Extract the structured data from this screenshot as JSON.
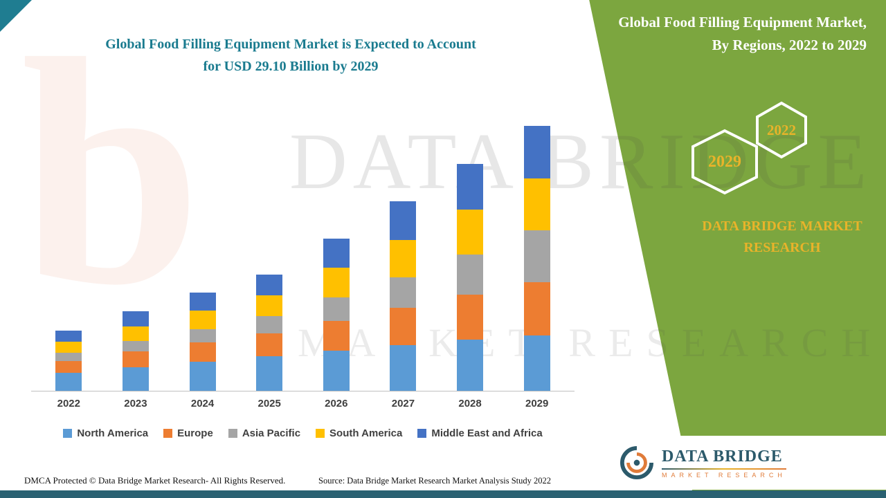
{
  "header": {
    "title_line1": "Global Food Filling Equipment Market is Expected to Account",
    "title_line2": "for USD 29.10 Billion by 2029"
  },
  "side_panel": {
    "title": "Global Food Filling Equipment Market, By Regions, 2022 to 2029",
    "badge_back": "2029",
    "badge_front": "2022",
    "brand_line1": "DATA BRIDGE MARKET",
    "brand_line2": "RESEARCH"
  },
  "watermark": {
    "logo_letter": "b",
    "line1": "DATA BRIDGE",
    "line2": "MARKET RESEARCH"
  },
  "logo": {
    "name": "DATA BRIDGE",
    "subtext": "MARKET RESEARCH"
  },
  "footer": {
    "left": "DMCA Protected © Data Bridge Market Research- All Rights Reserved.",
    "source": "Source: Data Bridge Market Research Market Analysis Study 2022"
  },
  "colors": {
    "panel_green": "#7CA63F",
    "accent_gold": "#E9B32A",
    "title_teal": "#1A7B8F"
  },
  "chart_data": {
    "type": "bar",
    "stacked": true,
    "title": "Global Food Filling Equipment Market, By Regions, 2022 to 2029",
    "unit": "USD Billion",
    "categories": [
      "2022",
      "2023",
      "2024",
      "2025",
      "2026",
      "2027",
      "2028",
      "2029"
    ],
    "series": [
      {
        "name": "North America",
        "color": "#5B9BD5",
        "values": [
          2.0,
          2.6,
          3.2,
          3.8,
          4.4,
          5.0,
          5.6,
          6.1
        ]
      },
      {
        "name": "Europe",
        "color": "#ED7D31",
        "values": [
          1.3,
          1.7,
          2.1,
          2.5,
          3.3,
          4.1,
          5.0,
          5.8
        ]
      },
      {
        "name": "Asia Pacific",
        "color": "#A5A5A5",
        "values": [
          0.9,
          1.2,
          1.5,
          1.9,
          2.6,
          3.4,
          4.4,
          5.7
        ]
      },
      {
        "name": "South America",
        "color": "#FFC000",
        "values": [
          1.2,
          1.6,
          2.0,
          2.3,
          3.2,
          4.1,
          4.9,
          5.7
        ]
      },
      {
        "name": "Middle East and Africa",
        "color": "#4472C4",
        "values": [
          1.2,
          1.6,
          2.0,
          2.3,
          3.2,
          4.2,
          5.0,
          5.8
        ]
      }
    ],
    "totals": [
      6.6,
      8.7,
      10.8,
      12.8,
      16.7,
      20.8,
      24.9,
      29.1
    ],
    "ylim": [
      0,
      30
    ],
    "grid": false,
    "y_axis_visible": false,
    "legend_position": "bottom"
  }
}
